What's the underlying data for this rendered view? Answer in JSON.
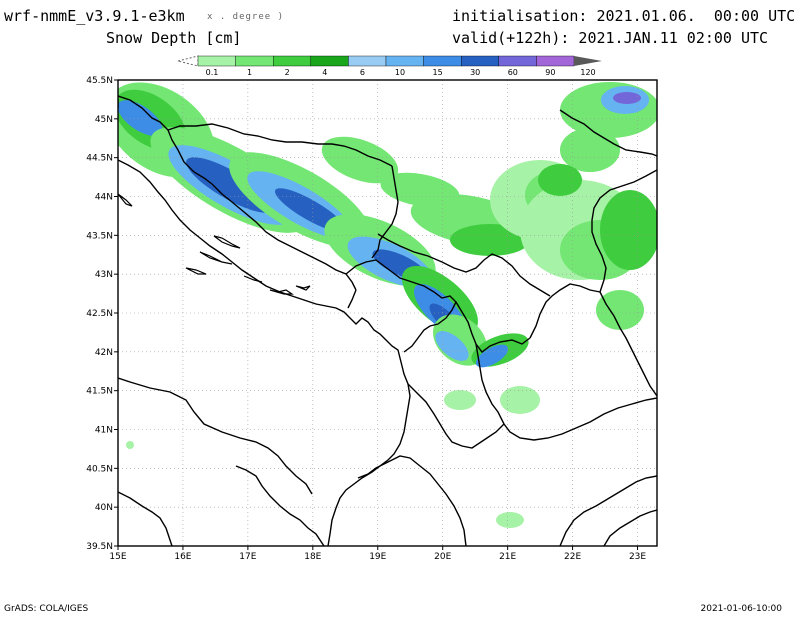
{
  "header": {
    "model": "wrf-nmmE_v3.9.1-e3km",
    "grid_units": "x . degree )",
    "field": "Snow Depth [cm]",
    "init": "initialisation: 2021.01.06.  00:00 UTC",
    "valid": "valid(+122h): 2021.JAN.11 02:00 UTC"
  },
  "colorbar": {
    "levels": [
      "0.1",
      "1",
      "2",
      "4",
      "6",
      "10",
      "15",
      "30",
      "60",
      "90",
      "120"
    ],
    "colors": [
      "#e6e6e6",
      "#a6f2a6",
      "#73e673",
      "#3fcc3f",
      "#1aa61a",
      "#99ccf2",
      "#66b3f2",
      "#3d8ce6",
      "#2661c2",
      "#7366d9",
      "#a366d9",
      "#595959"
    ]
  },
  "map": {
    "lat_labels": [
      "45.5N",
      "45N",
      "44.5N",
      "44N",
      "43.5N",
      "43N",
      "42.5N",
      "42N",
      "41.5N",
      "41N",
      "40.5N",
      "40N",
      "39.5N"
    ],
    "lon_labels": [
      "15E",
      "16E",
      "17E",
      "18E",
      "19E",
      "20E",
      "21E",
      "22E",
      "23E"
    ],
    "lat_range": [
      39.5,
      45.5
    ],
    "lon_range": [
      15,
      23.3
    ],
    "grid": true
  },
  "footer": {
    "source": "GrADS: COLA/IGES",
    "timestamp": "2021-01-06-10:00"
  }
}
